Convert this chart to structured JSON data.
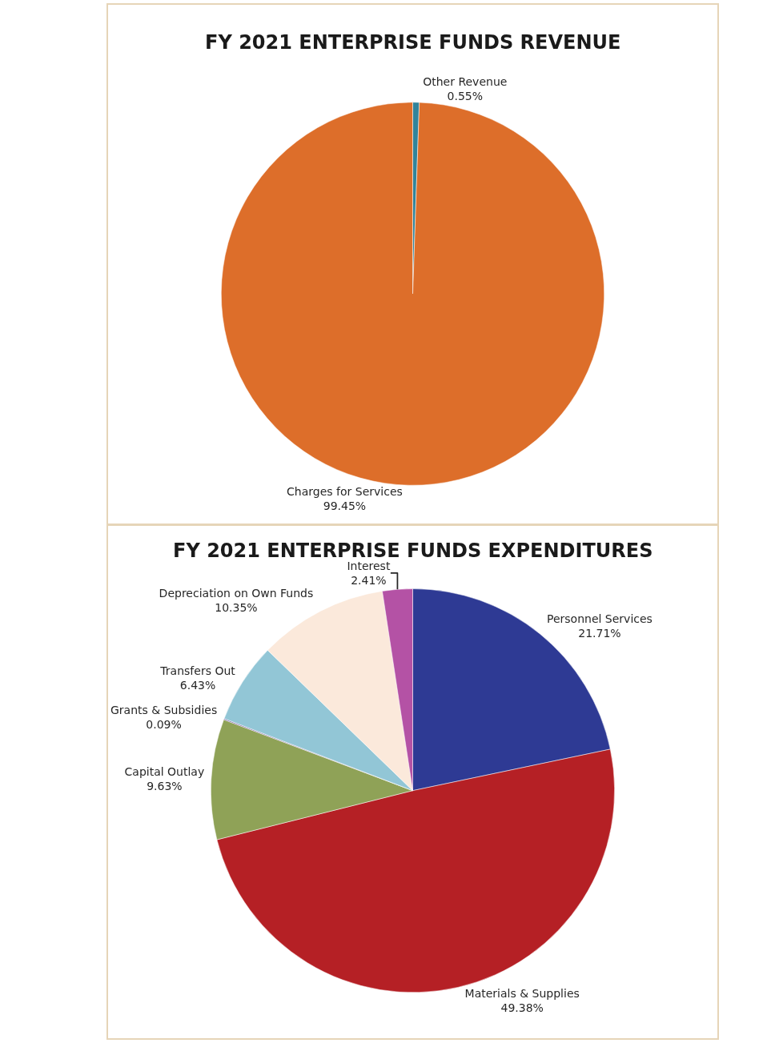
{
  "chart_data": [
    {
      "type": "pie",
      "title": "FY 2021 ENTERPRISE FUNDS REVENUE",
      "categories": [
        "Other Revenue",
        "Charges for Services"
      ],
      "values": [
        0.55,
        99.45
      ],
      "value_labels": [
        "0.55%",
        "99.45%"
      ],
      "colors": [
        "#31849b",
        "#dd6e2a"
      ],
      "legend": false
    },
    {
      "type": "pie",
      "title": "FY 2021 ENTERPRISE FUNDS EXPENDITURES",
      "categories": [
        "Personnel Services",
        "Materials & Supplies",
        "Capital Outlay",
        "Grants & Subsidies",
        "Transfers Out",
        "Depreciation on Own Funds",
        "Interest"
      ],
      "values": [
        21.71,
        49.38,
        9.63,
        0.09,
        6.43,
        10.35,
        2.41
      ],
      "value_labels": [
        "21.71%",
        "49.38%",
        "9.63%",
        "0.09%",
        "6.43%",
        "10.35%",
        "2.41%"
      ],
      "colors": [
        "#2e3a94",
        "#b52025",
        "#8fa257",
        "#7a5fa0",
        "#92c6d6",
        "#fbe9db",
        "#b452a5"
      ],
      "legend": false
    }
  ]
}
